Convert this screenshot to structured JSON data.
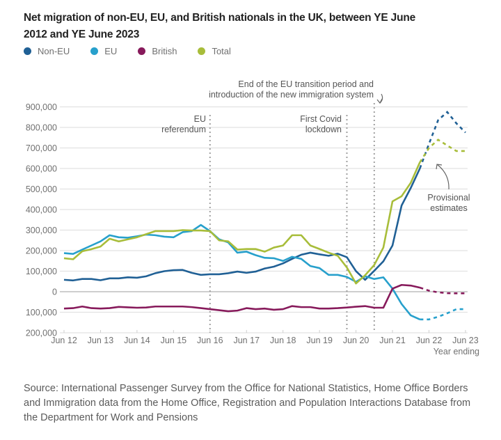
{
  "title": "Net migration of non-EU, EU, and British nationals in the UK, between YE June 2012 and YE June 2023",
  "source": "Source: International Passenger Survey from the Office for National Statistics, Home Office Borders and Immigration data from the Home Office, Registration and Population Interactions Database from the Department for Work and Pensions",
  "chart_data": {
    "type": "line",
    "title": "Net migration of non-EU, EU, and British nationals in the UK, between YE June 2012 and YE June 2023",
    "xlabel": "Year ending",
    "ylabel": "",
    "ylim": [
      -200000,
      900000
    ],
    "yticks": [
      900000,
      800000,
      700000,
      600000,
      500000,
      400000,
      300000,
      200000,
      100000,
      0,
      -100000,
      -200000
    ],
    "ytick_labels": [
      "900,000",
      "800,000",
      "700,000",
      "600,000",
      "500,000",
      "400,000",
      "300,000",
      "200,000",
      "100,000",
      "0",
      "100,000",
      "200,000"
    ],
    "xticks": [
      "Jun 12",
      "Jun 13",
      "Jun 14",
      "Jun 15",
      "Jun 16",
      "Jun 17",
      "Jun 18",
      "Jun 19",
      "Jun 20",
      "Jun 21",
      "Jun 22",
      "Jun 23"
    ],
    "x_start": "Jun 12",
    "x_step": "quarter",
    "grid": true,
    "legend_position": "top-left",
    "provisional_from_index": 40,
    "series": [
      {
        "name": "Non-EU",
        "color": "#206095",
        "values": [
          58000,
          55000,
          62000,
          62000,
          56000,
          65000,
          65000,
          70000,
          68000,
          75000,
          90000,
          100000,
          105000,
          106000,
          92000,
          82000,
          85000,
          85000,
          90000,
          98000,
          92000,
          98000,
          113000,
          122000,
          138000,
          160000,
          180000,
          190000,
          182000,
          175000,
          185000,
          168000,
          100000,
          58000,
          102000,
          148000,
          225000,
          420000,
          505000,
          600000,
          720000,
          835000,
          875000,
          820000,
          775000
        ]
      },
      {
        "name": "EU",
        "color": "#27a0cc",
        "values": [
          188000,
          184000,
          205000,
          225000,
          245000,
          275000,
          265000,
          263000,
          270000,
          278000,
          275000,
          268000,
          265000,
          290000,
          295000,
          325000,
          295000,
          255000,
          240000,
          190000,
          195000,
          178000,
          165000,
          163000,
          150000,
          170000,
          160000,
          125000,
          115000,
          82000,
          82000,
          72000,
          48000,
          75000,
          62000,
          70000,
          15000,
          -60000,
          -115000,
          -135000,
          -135000,
          -122000,
          -105000,
          -85000,
          -85000
        ]
      },
      {
        "name": "British",
        "color": "#871a5b",
        "values": [
          -82000,
          -80000,
          -72000,
          -80000,
          -82000,
          -80000,
          -74000,
          -76000,
          -78000,
          -77000,
          -72000,
          -72000,
          -72000,
          -72000,
          -75000,
          -80000,
          -85000,
          -90000,
          -95000,
          -92000,
          -80000,
          -85000,
          -82000,
          -88000,
          -85000,
          -70000,
          -75000,
          -75000,
          -82000,
          -82000,
          -80000,
          -77000,
          -73000,
          -70000,
          -78000,
          -78000,
          15000,
          33000,
          30000,
          20000,
          5000,
          -3000,
          -7000,
          -8000,
          -8000
        ]
      },
      {
        "name": "Total",
        "color": "#a8bd3a",
        "values": [
          163000,
          158000,
          197000,
          207000,
          220000,
          258000,
          245000,
          255000,
          265000,
          280000,
          295000,
          295000,
          295000,
          300000,
          298000,
          298000,
          295000,
          250000,
          245000,
          205000,
          208000,
          208000,
          195000,
          215000,
          225000,
          275000,
          275000,
          225000,
          208000,
          190000,
          175000,
          118000,
          40000,
          80000,
          130000,
          215000,
          440000,
          465000,
          530000,
          630000,
          700000,
          740000,
          712000,
          685000,
          685000
        ]
      }
    ],
    "annotations": [
      {
        "text": [
          "EU",
          "referendum"
        ],
        "at": "Jun 16",
        "type": "vertical-line"
      },
      {
        "text": [
          "First Covid",
          "lockdown"
        ],
        "at": "Mar 20",
        "type": "vertical-line"
      },
      {
        "text": [
          "End of the EU transition period and",
          "introduction of the new immigration system"
        ],
        "at": "Dec 20",
        "type": "vertical-line"
      },
      {
        "text": [
          "Provisional",
          "estimates"
        ],
        "type": "arrow-label"
      }
    ]
  }
}
